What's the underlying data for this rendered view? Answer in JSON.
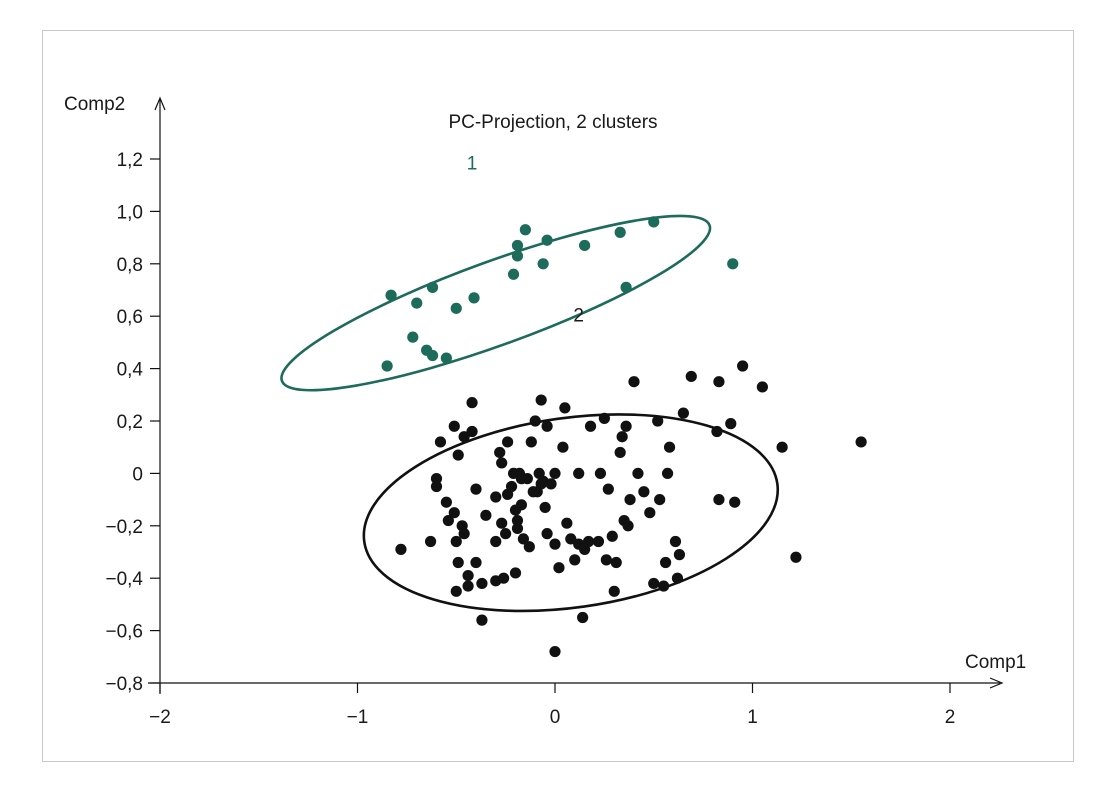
{
  "chart_data": {
    "type": "scatter",
    "title": "PC-Projection, 2 clusters",
    "xlabel": "Comp1",
    "ylabel": "Comp2",
    "xlim": [
      -2,
      2
    ],
    "ylim": [
      -0.8,
      1.2
    ],
    "xticks": [
      "−2",
      "−1",
      "0",
      "1",
      "2"
    ],
    "xtick_values": [
      -2,
      -1,
      0,
      1,
      2
    ],
    "yticks": [
      "1,2",
      "1,0",
      "0,8",
      "0,6",
      "0,4",
      "0,2",
      "0",
      "−0,2",
      "−0,4",
      "−0,6",
      "−0,8"
    ],
    "ytick_values": [
      1.2,
      1.0,
      0.8,
      0.6,
      0.4,
      0.2,
      0,
      -0.2,
      -0.4,
      -0.6,
      -0.8
    ],
    "grid": false,
    "colors": {
      "cluster1": "#1d6b5a",
      "cluster2": "#111111",
      "axis": "#111111"
    },
    "cluster_labels": [
      {
        "text": "1",
        "x": -0.42,
        "y": 1.16
      },
      {
        "text": "2",
        "x": 0.12,
        "y": 0.58
      }
    ],
    "ellipses": [
      {
        "cluster": "1",
        "cx": -0.3,
        "cy": 0.65,
        "rx": 1.2,
        "ry": 0.22,
        "angle_deg": 20
      },
      {
        "cluster": "2",
        "cx": 0.08,
        "cy": -0.15,
        "rx": 1.1,
        "ry": 0.5,
        "angle_deg": 8
      }
    ],
    "series": [
      {
        "name": "1",
        "color": "#1d6b5a",
        "points": [
          [
            -0.85,
            0.41
          ],
          [
            -0.83,
            0.68
          ],
          [
            -0.72,
            0.52
          ],
          [
            -0.7,
            0.65
          ],
          [
            -0.65,
            0.47
          ],
          [
            -0.62,
            0.71
          ],
          [
            -0.62,
            0.45
          ],
          [
            -0.55,
            0.44
          ],
          [
            -0.5,
            0.63
          ],
          [
            -0.41,
            0.67
          ],
          [
            -0.21,
            0.76
          ],
          [
            -0.19,
            0.83
          ],
          [
            -0.19,
            0.87
          ],
          [
            -0.15,
            0.93
          ],
          [
            -0.06,
            0.8
          ],
          [
            -0.04,
            0.89
          ],
          [
            0.15,
            0.87
          ],
          [
            0.33,
            0.92
          ],
          [
            0.36,
            0.71
          ],
          [
            0.5,
            0.96
          ],
          [
            0.9,
            0.8
          ]
        ]
      },
      {
        "name": "2",
        "color": "#111111",
        "points": [
          [
            -0.78,
            -0.29
          ],
          [
            -0.63,
            -0.26
          ],
          [
            -0.6,
            -0.05
          ],
          [
            -0.6,
            -0.02
          ],
          [
            -0.58,
            0.12
          ],
          [
            -0.55,
            -0.11
          ],
          [
            -0.54,
            -0.18
          ],
          [
            -0.51,
            -0.15
          ],
          [
            -0.51,
            0.18
          ],
          [
            -0.5,
            -0.26
          ],
          [
            -0.5,
            -0.45
          ],
          [
            -0.49,
            0.07
          ],
          [
            -0.49,
            -0.34
          ],
          [
            -0.47,
            -0.2
          ],
          [
            -0.46,
            0.14
          ],
          [
            -0.46,
            -0.23
          ],
          [
            -0.44,
            -0.39
          ],
          [
            -0.44,
            -0.43
          ],
          [
            -0.42,
            0.16
          ],
          [
            -0.42,
            0.27
          ],
          [
            -0.4,
            -0.34
          ],
          [
            -0.4,
            -0.06
          ],
          [
            -0.37,
            -0.42
          ],
          [
            -0.37,
            -0.56
          ],
          [
            -0.35,
            -0.16
          ],
          [
            -0.3,
            -0.41
          ],
          [
            -0.3,
            -0.26
          ],
          [
            -0.3,
            -0.09
          ],
          [
            -0.28,
            0.08
          ],
          [
            -0.27,
            0.04
          ],
          [
            -0.27,
            -0.19
          ],
          [
            -0.26,
            -0.4
          ],
          [
            -0.25,
            -0.23
          ],
          [
            -0.24,
            -0.08
          ],
          [
            -0.24,
            0.12
          ],
          [
            -0.22,
            -0.05
          ],
          [
            -0.21,
            0.0
          ],
          [
            -0.2,
            -0.38
          ],
          [
            -0.2,
            -0.14
          ],
          [
            -0.19,
            -0.18
          ],
          [
            -0.19,
            -0.21
          ],
          [
            -0.18,
            0.0
          ],
          [
            -0.17,
            -0.12
          ],
          [
            -0.17,
            -0.02
          ],
          [
            -0.16,
            -0.25
          ],
          [
            -0.14,
            -0.02
          ],
          [
            -0.13,
            -0.28
          ],
          [
            -0.12,
            0.12
          ],
          [
            -0.11,
            -0.07
          ],
          [
            -0.1,
            0.2
          ],
          [
            -0.09,
            -0.07
          ],
          [
            -0.08,
            0.0
          ],
          [
            -0.07,
            0.28
          ],
          [
            -0.07,
            -0.04
          ],
          [
            -0.06,
            -0.03
          ],
          [
            -0.05,
            -0.13
          ],
          [
            -0.04,
            0.18
          ],
          [
            -0.04,
            -0.23
          ],
          [
            -0.02,
            -0.04
          ],
          [
            0.0,
            -0.27
          ],
          [
            0.0,
            0.0
          ],
          [
            0.02,
            -0.36
          ],
          [
            0.04,
            0.1
          ],
          [
            0.05,
            0.25
          ],
          [
            0.06,
            -0.19
          ],
          [
            0.08,
            -0.25
          ],
          [
            0.1,
            -0.33
          ],
          [
            0.12,
            -0.27
          ],
          [
            0.12,
            0.0
          ],
          [
            0.14,
            -0.55
          ],
          [
            0.15,
            -0.29
          ],
          [
            0.17,
            -0.26
          ],
          [
            0.18,
            0.18
          ],
          [
            0.22,
            -0.26
          ],
          [
            0.23,
            0.0
          ],
          [
            0.25,
            0.21
          ],
          [
            0.26,
            -0.33
          ],
          [
            0.27,
            -0.06
          ],
          [
            0.29,
            -0.24
          ],
          [
            0.3,
            -0.45
          ],
          [
            0.31,
            -0.34
          ],
          [
            0.33,
            0.08
          ],
          [
            0.34,
            0.14
          ],
          [
            0.35,
            -0.18
          ],
          [
            0.36,
            0.18
          ],
          [
            0.37,
            -0.2
          ],
          [
            0.38,
            -0.1
          ],
          [
            0.4,
            0.35
          ],
          [
            0.42,
            0.0
          ],
          [
            0.45,
            -0.07
          ],
          [
            0.48,
            -0.15
          ],
          [
            0.5,
            -0.42
          ],
          [
            0.52,
            0.2
          ],
          [
            0.53,
            -0.1
          ],
          [
            0.55,
            -0.43
          ],
          [
            0.56,
            -0.34
          ],
          [
            0.57,
            0.0
          ],
          [
            0.58,
            0.1
          ],
          [
            0.61,
            -0.26
          ],
          [
            0.62,
            -0.4
          ],
          [
            0.63,
            -0.31
          ],
          [
            0.65,
            0.23
          ],
          [
            0.69,
            0.37
          ],
          [
            0.82,
            0.16
          ],
          [
            0.83,
            -0.1
          ],
          [
            0.83,
            0.35
          ],
          [
            0.89,
            0.19
          ],
          [
            0.91,
            -0.11
          ],
          [
            0.95,
            0.41
          ],
          [
            1.05,
            0.33
          ],
          [
            1.15,
            0.1
          ],
          [
            1.22,
            -0.32
          ],
          [
            1.55,
            0.12
          ],
          [
            0.0,
            -0.68
          ]
        ]
      }
    ]
  }
}
